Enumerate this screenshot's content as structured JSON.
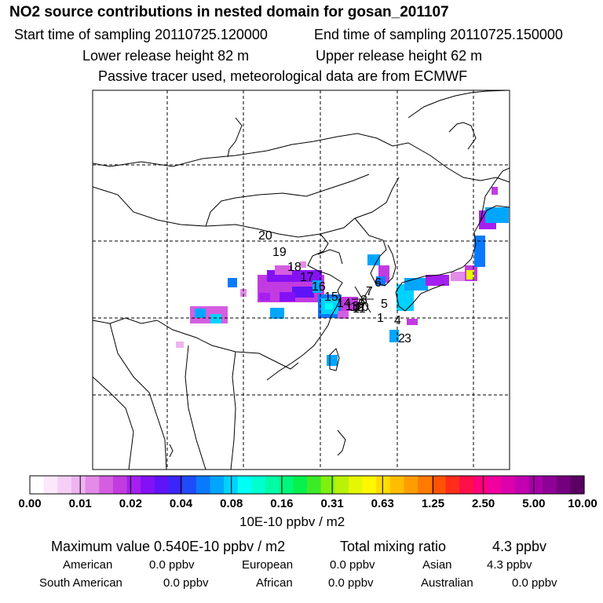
{
  "title": "NO2 source contributions in nested domain for gosan_201107",
  "header": {
    "start_label": "Start time of sampling 20110725.120000",
    "end_label": "End time of sampling 20110725.150000",
    "lower_label": "Lower release height   82 m",
    "upper_label": "Upper release height   62 m",
    "tracer_note": "Passive tracer used, meteorological data are from ECMWF"
  },
  "map": {
    "frame_color": "#000000",
    "gridline_style": "dashed",
    "trajectory_labels": [
      "20",
      "19",
      "18",
      "17",
      "16",
      "15",
      "14",
      "13",
      "12",
      "11",
      "10",
      "9",
      "8",
      "7",
      "6",
      "5",
      "4",
      "3",
      "2",
      "1"
    ],
    "station_marker": "cross-icon"
  },
  "colorbar": {
    "ticks": [
      "0.00",
      "0.01",
      "0.02",
      "0.04",
      "0.08",
      "0.16",
      "0.31",
      "0.63",
      "1.25",
      "2.50",
      "5.00",
      "10.00"
    ],
    "colors": [
      "#ffffff",
      "#fbe8fb",
      "#f5cff6",
      "#eeb4f0",
      "#e28be7",
      "#d35fe0",
      "#c23be0",
      "#a61ff0",
      "#8411f6",
      "#5f13f8",
      "#3a26fa",
      "#1e4bfc",
      "#0a7afd",
      "#00a6fe",
      "#00d2ff",
      "#00fff5",
      "#00ffd0",
      "#00fda6",
      "#00f77a",
      "#08f04e",
      "#3ceb26",
      "#7ef011",
      "#b8f307",
      "#e6f704",
      "#fff600",
      "#ffdc00",
      "#ffbd00",
      "#ff9d00",
      "#ff7a00",
      "#ff5300",
      "#ff2d1a",
      "#ff0f4a",
      "#ff007a",
      "#f300a0",
      "#dc00ad",
      "#c200b0",
      "#a800a8",
      "#8f0096",
      "#75007f",
      "#5c0064"
    ],
    "unit": "10E-10 ppbv / m2"
  },
  "summary": {
    "max_label": "Maximum value  0.540E-10 ppbv / m2",
    "total_label": "Total mixing ratio",
    "total_value": "4.3 ppbv",
    "regions": [
      {
        "name": "American",
        "value": "0.0 ppbv"
      },
      {
        "name": "European",
        "value": "0.0 ppbv"
      },
      {
        "name": "Asian",
        "value": "4.3 ppbv"
      },
      {
        "name": "South American",
        "value": "0.0 ppbv"
      },
      {
        "name": "African",
        "value": "0.0 ppbv"
      },
      {
        "name": "Australian",
        "value": "0.0 ppbv"
      }
    ]
  }
}
